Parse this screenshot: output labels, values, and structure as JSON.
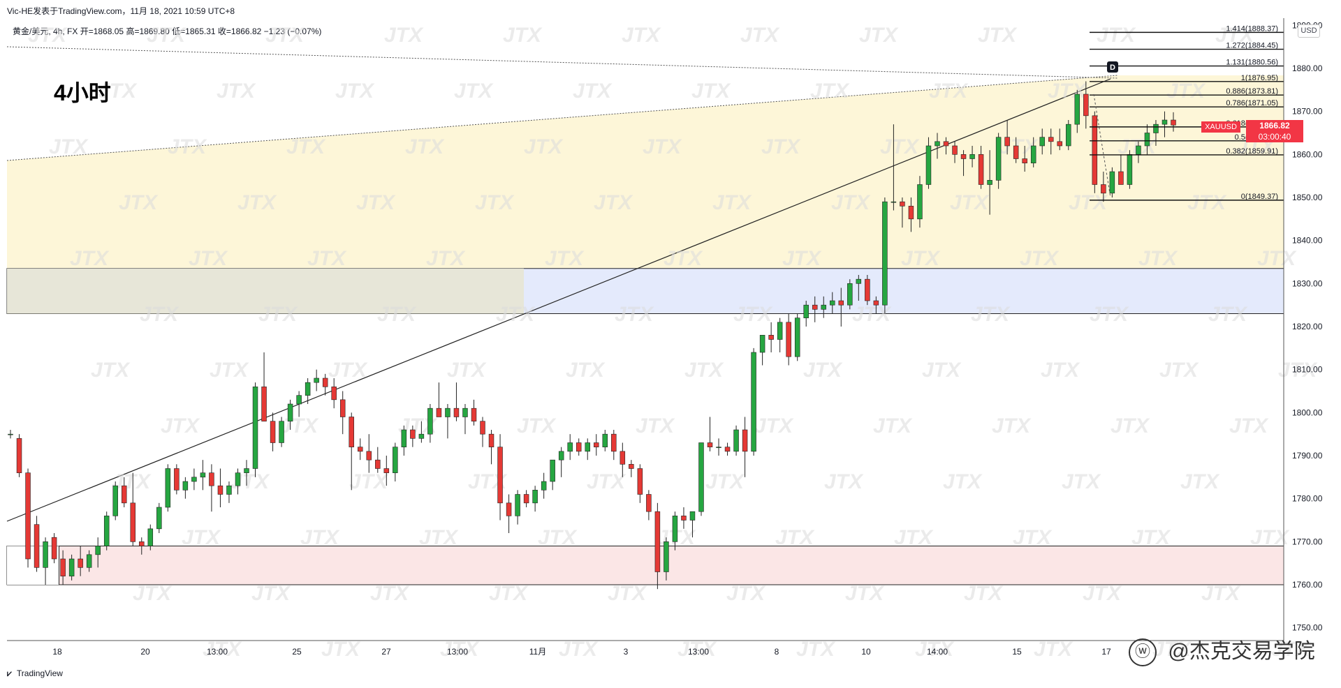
{
  "header": {
    "attribution": "Vic-HE发表于TradingView.com，11月 18, 2021 10:59 UTC+8"
  },
  "legend": {
    "symbol": "黄金/美元, 4h, FX",
    "open": "开=1868.05",
    "high": "高=1869.80",
    "low": "低=1865.31",
    "close": "收=1866.82",
    "change": "−1.23 (−0.07%)"
  },
  "timeframe_label": "4小时",
  "currency_badge": "USD",
  "last_price": {
    "symbol": "XAUUSD",
    "price": "1866.82",
    "countdown": "03:00:40",
    "color": "#f23645"
  },
  "footer": {
    "brand": "TradingView",
    "signature": "@杰克交易学院"
  },
  "watermark": "JTX",
  "colors": {
    "up": "#26a641",
    "down": "#e53935",
    "zone_yellow": "#fdf6d8",
    "zone_blue": "#e4eafc",
    "zone_red": "#fbe6e6",
    "accent": "#f23645"
  },
  "chart_data": {
    "type": "candlestick",
    "ylim": [
      1745,
      1890
    ],
    "y_ticks": [
      "1890.00",
      "1880.00",
      "1870.00",
      "1860.00",
      "1850.00",
      "1840.00",
      "1830.00",
      "1820.00",
      "1810.00",
      "1800.00",
      "1790.00",
      "1780.00",
      "1770.00",
      "1760.00",
      "1750.00"
    ],
    "x_ticks": [
      "18",
      "20",
      "13:00",
      "25",
      "27",
      "13:00",
      "11月",
      "3",
      "13:00",
      "8",
      "10",
      "14:00",
      "15",
      "17"
    ],
    "fib_levels": [
      {
        "label": "1.414(1888.37)",
        "value": 1888.37
      },
      {
        "label": "1.272(1884.45)",
        "value": 1884.45
      },
      {
        "label": "1.131(1880.56)",
        "value": 1880.56
      },
      {
        "label": "1(1876.95)",
        "value": 1876.95
      },
      {
        "label": "0.886(1873.81)",
        "value": 1873.81
      },
      {
        "label": "0.786(1871.05)",
        "value": 1871.05
      },
      {
        "label": "0.618(1866.40)",
        "value": 1866.4
      },
      {
        "label": "0.5(1863.16)",
        "value": 1863.16
      },
      {
        "label": "0.382(1859.91)",
        "value": 1859.91
      },
      {
        "label": "0(1849.37)",
        "value": 1849.37
      }
    ],
    "fib_marker": "D",
    "zones": [
      {
        "name": "resistance-zone",
        "from": 1823.0,
        "to": 1833.5
      },
      {
        "name": "support-zone",
        "from": 1760.0,
        "to": 1769.0
      }
    ],
    "candles": [
      [
        1795,
        1796,
        1794,
        1795
      ],
      [
        1794,
        1795,
        1785,
        1786
      ],
      [
        1786,
        1787,
        1764,
        1766
      ],
      [
        1774,
        1776,
        1763,
        1764
      ],
      [
        1764,
        1771,
        1760,
        1770
      ],
      [
        1771,
        1772,
        1765,
        1766
      ],
      [
        1766,
        1768,
        1760,
        1762
      ],
      [
        1762,
        1767,
        1761,
        1766
      ],
      [
        1766,
        1769,
        1762,
        1764
      ],
      [
        1764,
        1768,
        1763,
        1767
      ],
      [
        1767,
        1771,
        1764,
        1769
      ],
      [
        1769,
        1777,
        1768,
        1776
      ],
      [
        1776,
        1784,
        1775,
        1783
      ],
      [
        1783,
        1785,
        1778,
        1779
      ],
      [
        1779,
        1786,
        1769,
        1770
      ],
      [
        1770,
        1771,
        1767,
        1769
      ],
      [
        1769,
        1774,
        1768,
        1773
      ],
      [
        1773,
        1779,
        1772,
        1778
      ],
      [
        1778,
        1788,
        1777,
        1787
      ],
      [
        1787,
        1788,
        1781,
        1782
      ],
      [
        1782,
        1785,
        1780,
        1784
      ],
      [
        1784,
        1787,
        1782,
        1785
      ],
      [
        1785,
        1789,
        1782,
        1786
      ],
      [
        1786,
        1788,
        1777,
        1783
      ],
      [
        1783,
        1787,
        1778,
        1781
      ],
      [
        1781,
        1784,
        1779,
        1783
      ],
      [
        1783,
        1787,
        1781,
        1786
      ],
      [
        1786,
        1789,
        1783,
        1787
      ],
      [
        1787,
        1807,
        1785,
        1806
      ],
      [
        1806,
        1814,
        1799,
        1798
      ],
      [
        1798,
        1800,
        1791,
        1793
      ],
      [
        1793,
        1799,
        1792,
        1798
      ],
      [
        1798,
        1803,
        1796,
        1802
      ],
      [
        1802,
        1805,
        1799,
        1804
      ],
      [
        1804,
        1808,
        1802,
        1807
      ],
      [
        1807,
        1810,
        1805,
        1808
      ],
      [
        1808,
        1809,
        1804,
        1806
      ],
      [
        1806,
        1808,
        1801,
        1803
      ],
      [
        1803,
        1805,
        1795,
        1799
      ],
      [
        1799,
        1800,
        1782,
        1792
      ],
      [
        1792,
        1794,
        1789,
        1791
      ],
      [
        1791,
        1795,
        1786,
        1789
      ],
      [
        1789,
        1792,
        1786,
        1787
      ],
      [
        1787,
        1790,
        1783,
        1786
      ],
      [
        1786,
        1793,
        1784,
        1792
      ],
      [
        1792,
        1797,
        1790,
        1796
      ],
      [
        1796,
        1797,
        1792,
        1794
      ],
      [
        1794,
        1798,
        1793,
        1795
      ],
      [
        1795,
        1802,
        1793,
        1801
      ],
      [
        1801,
        1807,
        1799,
        1799
      ],
      [
        1799,
        1802,
        1794,
        1801
      ],
      [
        1801,
        1807,
        1798,
        1799
      ],
      [
        1799,
        1802,
        1795,
        1801
      ],
      [
        1801,
        1803,
        1797,
        1798
      ],
      [
        1798,
        1799,
        1792,
        1795
      ],
      [
        1795,
        1796,
        1788,
        1792
      ],
      [
        1792,
        1795,
        1775,
        1779
      ],
      [
        1779,
        1781,
        1772,
        1776
      ],
      [
        1776,
        1782,
        1774,
        1781
      ],
      [
        1781,
        1782,
        1778,
        1779
      ],
      [
        1779,
        1783,
        1777,
        1782
      ],
      [
        1782,
        1786,
        1780,
        1784
      ],
      [
        1784,
        1789,
        1782,
        1789
      ],
      [
        1789,
        1792,
        1785,
        1791
      ],
      [
        1791,
        1795,
        1789,
        1793
      ],
      [
        1793,
        1794,
        1790,
        1791
      ],
      [
        1791,
        1794,
        1789,
        1793
      ],
      [
        1793,
        1795,
        1790,
        1792
      ],
      [
        1792,
        1796,
        1791,
        1795
      ],
      [
        1795,
        1796,
        1789,
        1791
      ],
      [
        1791,
        1793,
        1785,
        1788
      ],
      [
        1788,
        1789,
        1785,
        1787
      ],
      [
        1787,
        1788,
        1779,
        1781
      ],
      [
        1781,
        1782,
        1775,
        1777
      ],
      [
        1777,
        1779,
        1759,
        1763
      ],
      [
        1763,
        1771,
        1761,
        1770
      ],
      [
        1770,
        1777,
        1768,
        1776
      ],
      [
        1776,
        1778,
        1773,
        1775
      ],
      [
        1775,
        1777,
        1771,
        1777
      ],
      [
        1777,
        1793,
        1776,
        1793
      ],
      [
        1793,
        1799,
        1791,
        1792
      ],
      [
        1792,
        1794,
        1790,
        1792
      ],
      [
        1792,
        1793,
        1790,
        1791
      ],
      [
        1791,
        1797,
        1790,
        1796
      ],
      [
        1796,
        1799,
        1785,
        1791
      ],
      [
        1791,
        1815,
        1790,
        1814
      ],
      [
        1814,
        1818,
        1811,
        1818
      ],
      [
        1818,
        1821,
        1814,
        1817
      ],
      [
        1817,
        1822,
        1814,
        1821
      ],
      [
        1821,
        1823,
        1811,
        1813
      ],
      [
        1813,
        1823,
        1812,
        1822
      ],
      [
        1822,
        1826,
        1820,
        1825
      ],
      [
        1825,
        1827,
        1821,
        1824
      ],
      [
        1824,
        1827,
        1822,
        1825
      ],
      [
        1825,
        1828,
        1823,
        1826
      ],
      [
        1826,
        1829,
        1820,
        1825
      ],
      [
        1825,
        1831,
        1824,
        1830
      ],
      [
        1830,
        1832,
        1826,
        1831
      ],
      [
        1831,
        1832,
        1825,
        1826
      ],
      [
        1826,
        1827,
        1823,
        1825
      ],
      [
        1825,
        1850,
        1823,
        1849
      ],
      [
        1849,
        1867,
        1847,
        1849
      ],
      [
        1849,
        1850,
        1843,
        1848
      ],
      [
        1848,
        1850,
        1842,
        1845
      ],
      [
        1845,
        1855,
        1843,
        1853
      ],
      [
        1853,
        1864,
        1852,
        1862
      ],
      [
        1862,
        1865,
        1859,
        1863
      ],
      [
        1863,
        1864,
        1860,
        1862
      ],
      [
        1862,
        1863,
        1858,
        1860
      ],
      [
        1860,
        1861,
        1855,
        1859
      ],
      [
        1859,
        1862,
        1857,
        1860
      ],
      [
        1860,
        1862,
        1852,
        1853
      ],
      [
        1853,
        1861,
        1846,
        1854
      ],
      [
        1854,
        1865,
        1852,
        1864
      ],
      [
        1864,
        1868,
        1860,
        1862
      ],
      [
        1862,
        1864,
        1858,
        1859
      ],
      [
        1859,
        1862,
        1856,
        1858
      ],
      [
        1858,
        1864,
        1857,
        1862
      ],
      [
        1862,
        1866,
        1860,
        1864
      ],
      [
        1864,
        1866,
        1860,
        1863
      ],
      [
        1863,
        1866,
        1861,
        1862
      ],
      [
        1862,
        1868,
        1861,
        1867
      ],
      [
        1867,
        1875,
        1865,
        1874
      ],
      [
        1874,
        1877,
        1866,
        1869
      ],
      [
        1869,
        1870,
        1851,
        1853
      ],
      [
        1853,
        1856,
        1849,
        1851
      ],
      [
        1851,
        1857,
        1850,
        1856
      ],
      [
        1856,
        1860,
        1854,
        1853
      ],
      [
        1853,
        1861,
        1852,
        1860
      ],
      [
        1860,
        1863,
        1858,
        1862
      ],
      [
        1862,
        1867,
        1860,
        1865
      ],
      [
        1865,
        1868,
        1862,
        1867
      ],
      [
        1867,
        1870,
        1864,
        1868
      ],
      [
        1868,
        1869.8,
        1865.31,
        1866.82
      ]
    ]
  }
}
